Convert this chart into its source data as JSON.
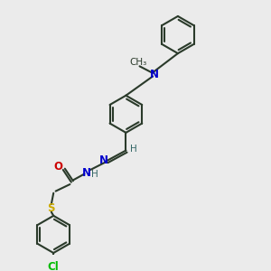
{
  "bg_color": "#ebebeb",
  "line_color": "#2a3a2a",
  "bond_width": 1.5,
  "atom_colors": {
    "N": "#0000cc",
    "O": "#cc0000",
    "S": "#ccaa00",
    "Cl": "#00bb00",
    "H": "#336666",
    "C": "#2a3a2a"
  },
  "font_size_atom": 8.5,
  "font_size_small": 7.5
}
